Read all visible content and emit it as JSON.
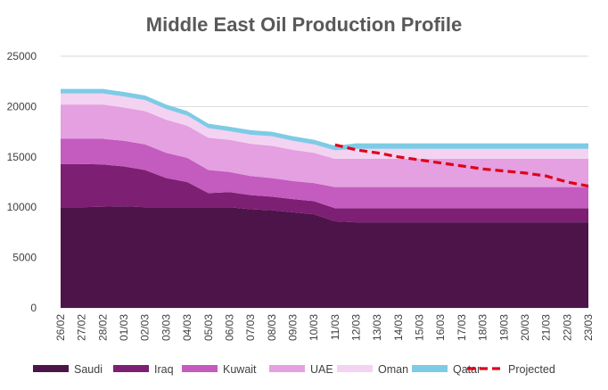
{
  "chart_data": {
    "type": "area",
    "stacked": true,
    "title": "Middle East Oil Production Profile",
    "xlabel": "",
    "ylabel": "",
    "ylim": [
      0,
      25000
    ],
    "yticks": [
      0,
      5000,
      10000,
      15000,
      20000,
      25000
    ],
    "grid": true,
    "legend_position": "bottom",
    "categories": [
      "26/02",
      "27/02",
      "28/02",
      "01/03",
      "02/03",
      "03/03",
      "04/03",
      "05/03",
      "06/03",
      "07/03",
      "08/03",
      "09/03",
      "10/03",
      "11/03",
      "12/03",
      "13/03",
      "14/03",
      "15/03",
      "16/03",
      "17/03",
      "18/03",
      "19/03",
      "20/03",
      "21/03",
      "22/03",
      "23/03"
    ],
    "series": [
      {
        "name": "Saudi",
        "color": "#4d1449",
        "values": [
          10000,
          10000,
          10050,
          10100,
          10000,
          10000,
          10000,
          10000,
          10000,
          9800,
          9700,
          9500,
          9300,
          8600,
          8500,
          8500,
          8500,
          8500,
          8500,
          8500,
          8500,
          8500,
          8500,
          8500,
          8500,
          8500
        ]
      },
      {
        "name": "Iraq",
        "color": "#7d1f73",
        "values": [
          4300,
          4300,
          4200,
          3950,
          3700,
          2900,
          2500,
          1400,
          1500,
          1400,
          1350,
          1300,
          1300,
          1300,
          1400,
          1400,
          1400,
          1400,
          1400,
          1400,
          1400,
          1400,
          1400,
          1400,
          1400,
          1400
        ]
      },
      {
        "name": "Kuwait",
        "color": "#c45bbf",
        "values": [
          2500,
          2500,
          2550,
          2550,
          2550,
          2500,
          2400,
          2300,
          2000,
          1900,
          1850,
          1800,
          1800,
          2100,
          2100,
          2100,
          2100,
          2100,
          2100,
          2100,
          2100,
          2100,
          2100,
          2100,
          2100,
          2100
        ]
      },
      {
        "name": "UAE",
        "color": "#e4a0e0",
        "values": [
          3400,
          3400,
          3400,
          3300,
          3300,
          3300,
          3200,
          3200,
          3200,
          3200,
          3200,
          3100,
          3000,
          2800,
          2800,
          2800,
          2800,
          2800,
          2800,
          2800,
          2800,
          2800,
          2800,
          2800,
          2800,
          2800
        ]
      },
      {
        "name": "Oman",
        "color": "#f3d3f1",
        "values": [
          1100,
          1100,
          1100,
          1100,
          1100,
          1050,
          1000,
          950,
          850,
          900,
          950,
          900,
          850,
          850,
          1000,
          1000,
          1000,
          1000,
          1000,
          1000,
          1000,
          1000,
          1000,
          1000,
          1000,
          1000
        ]
      },
      {
        "name": "Qatar",
        "color": "#7ecbe6",
        "values": [
          450,
          450,
          450,
          450,
          450,
          450,
          450,
          450,
          450,
          450,
          450,
          450,
          450,
          450,
          550,
          550,
          550,
          550,
          550,
          550,
          550,
          550,
          550,
          550,
          550,
          550
        ]
      }
    ],
    "projected": {
      "name": "Projected",
      "color": "#e0001b",
      "style": "dashed",
      "start_index": 13,
      "values": [
        16200,
        15700,
        15400,
        15000,
        14700,
        14400,
        14100,
        13800,
        13600,
        13400,
        13100,
        12500,
        12100
      ]
    }
  }
}
